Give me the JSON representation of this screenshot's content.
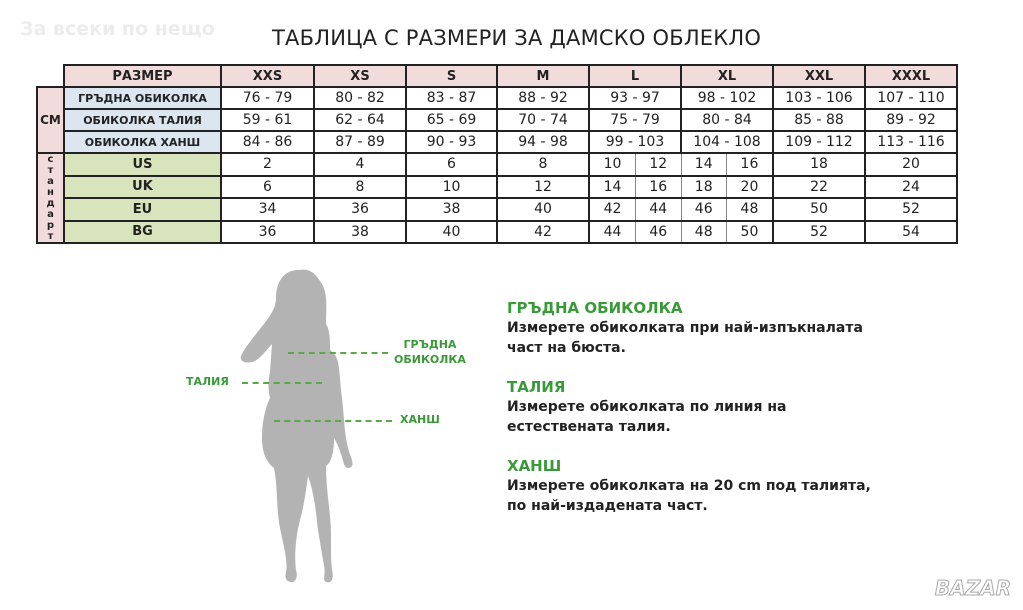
{
  "watermark": "За всеки по нещо",
  "title": "ТАБЛИЦА С РАЗМЕРИ ЗА ДАМСКО ОБЛЕКЛО",
  "table": {
    "header_label": "РАЗМЕР",
    "sizes": [
      "XXS",
      "XS",
      "S",
      "M",
      "L",
      "XL",
      "XXL",
      "XXXL"
    ],
    "cm_group": "СМ",
    "std_group": "стандарт",
    "cm_rows": [
      {
        "label": "ГРЪДНА ОБИКОЛКА",
        "values": [
          "76 - 79",
          "80 - 82",
          "83 - 87",
          "88 - 92",
          "93 - 97",
          "98 - 102",
          "103 - 106",
          "107 - 110"
        ]
      },
      {
        "label": "ОБИКОЛКА ТАЛИЯ",
        "values": [
          "59 - 61",
          "62 - 64",
          "65 - 69",
          "70 - 74",
          "75 - 79",
          "80 - 84",
          "85 - 88",
          "89 - 92"
        ]
      },
      {
        "label": "ОБИКОЛКА ХАНШ",
        "values": [
          "84 - 86",
          "87 - 89",
          "90 - 93",
          "94 - 98",
          "99 - 103",
          "104 - 108",
          "109 - 112",
          "113 - 116"
        ]
      }
    ],
    "std_rows": [
      {
        "label": "US",
        "values": [
          "2",
          "4",
          "6",
          "8",
          "10",
          "12",
          "14",
          "16",
          "18",
          "20"
        ]
      },
      {
        "label": "UK",
        "values": [
          "6",
          "8",
          "10",
          "12",
          "14",
          "16",
          "18",
          "20",
          "22",
          "24"
        ]
      },
      {
        "label": "EU",
        "values": [
          "34",
          "36",
          "38",
          "40",
          "42",
          "44",
          "46",
          "48",
          "50",
          "52"
        ]
      },
      {
        "label": "BG",
        "values": [
          "36",
          "38",
          "40",
          "42",
          "44",
          "46",
          "48",
          "50",
          "52",
          "54"
        ]
      }
    ]
  },
  "figure": {
    "bust_label_1": "ГРЪДНА",
    "bust_label_2": "ОБИКОЛКА",
    "waist_label": "ТАЛИЯ",
    "hip_label": "ХАНШ"
  },
  "instructions": [
    {
      "heading": "ГРЪДНА ОБИКОЛКА",
      "line1": "Измерете обиколката при най-изпъкналата",
      "line2": "част на бюста."
    },
    {
      "heading": "ТАЛИЯ",
      "line1": "Измерете обиколката по линия на",
      "line2": "естествената талия."
    },
    {
      "heading": "ХАНШ",
      "line1": "Измерете обиколката на 20 cm под талията,",
      "line2": "по най-издадената част."
    }
  ],
  "logo": "BAZAR",
  "colors": {
    "header_pink": "#f2dcdb",
    "label_blue": "#dce6f1",
    "label_green": "#d8e4bc",
    "accent_green": "#3a9a3a",
    "silhouette": "#b3b3b3"
  }
}
